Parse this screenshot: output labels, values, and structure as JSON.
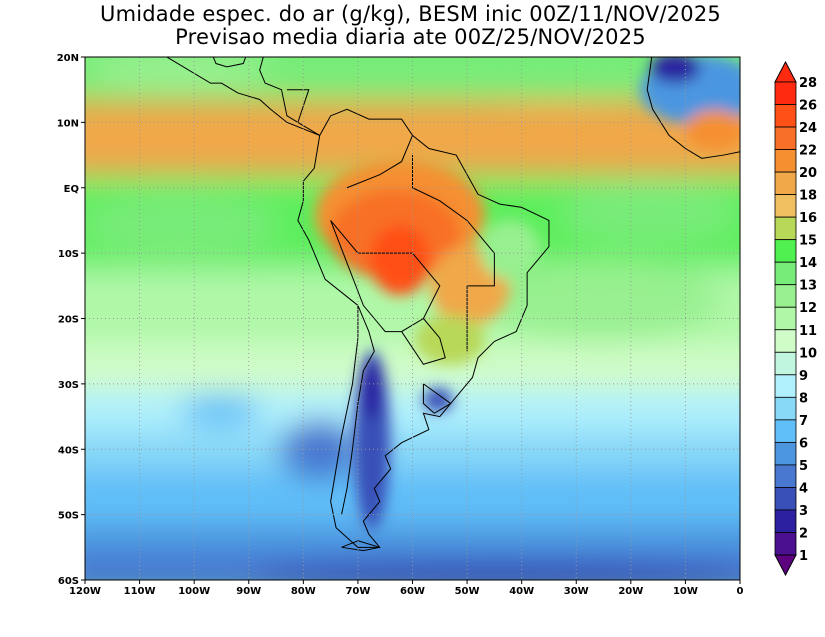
{
  "title": {
    "line1": "Umidade espec. do ar (g/kg), BESM inic 00Z/11/NOV/2025",
    "line2": "Previsao media diaria ate 00Z/25/NOV/2025"
  },
  "axes": {
    "lat_labels": [
      "20N",
      "10N",
      "EQ",
      "10S",
      "20S",
      "30S",
      "40S",
      "50S",
      "60S"
    ],
    "lon_labels": [
      "120W",
      "110W",
      "100W",
      "90W",
      "80W",
      "70W",
      "60W",
      "50W",
      "40W",
      "30W",
      "20W",
      "10W",
      "0"
    ]
  },
  "colorbar": {
    "labels": [
      "28",
      "26",
      "24",
      "22",
      "20",
      "18",
      "16",
      "15",
      "14",
      "13",
      "12",
      "11",
      "10",
      "9",
      "8",
      "7",
      "6",
      "5",
      "4",
      "3",
      "2",
      "1"
    ],
    "colors": [
      "#ff2a10",
      "#ff2a10",
      "#ff5018",
      "#f87028",
      "#f59030",
      "#f0a848",
      "#f0c060",
      "#b8d858",
      "#50f050",
      "#78ec78",
      "#98f090",
      "#b0f8a8",
      "#d0fcc8",
      "#c0f5e0",
      "#b0f0fc",
      "#88d8f8",
      "#60bef8",
      "#4c96e0",
      "#4878d0",
      "#3850b8",
      "#2c20a0",
      "#4a1090",
      "#5c0080"
    ]
  }
}
